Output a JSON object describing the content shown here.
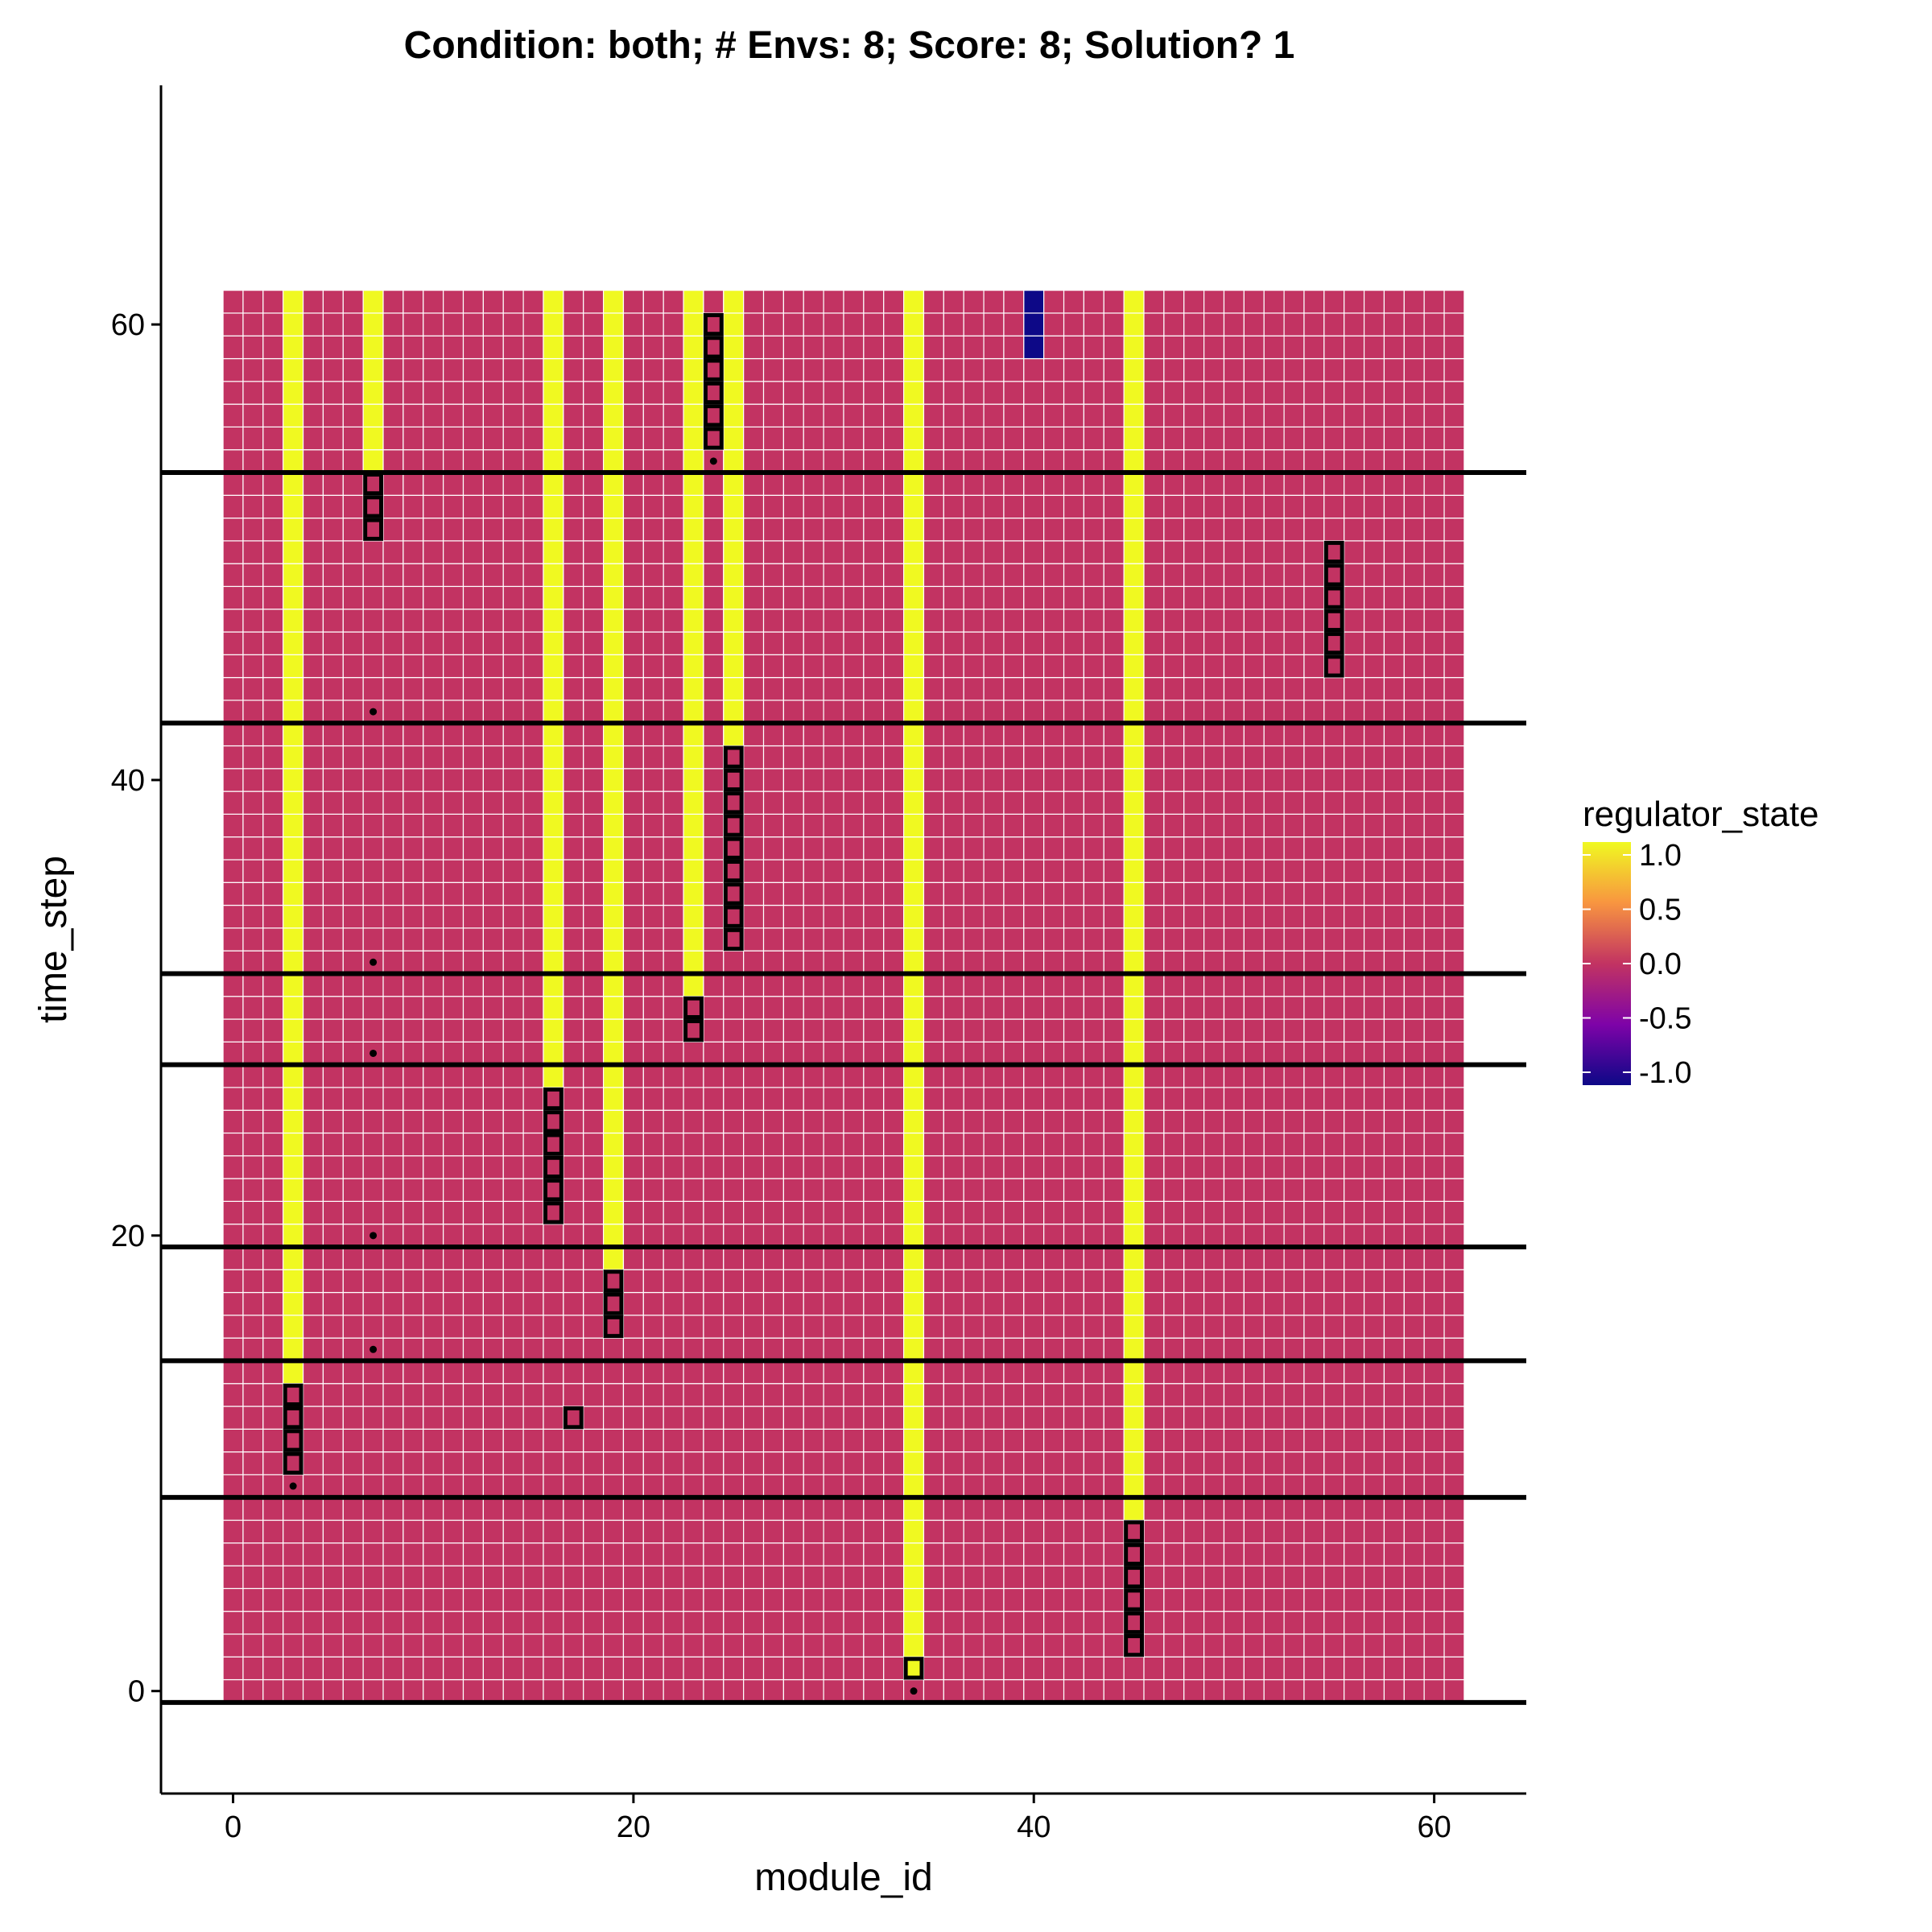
{
  "chart_data": {
    "type": "heatmap",
    "title": "Condition: both; # Envs: 8; Score: 8; Solution? 1",
    "xlabel": "module_id",
    "ylabel": "time_step",
    "xlim": [
      -3.6,
      64.6
    ],
    "ylim": [
      -4.5,
      70.5
    ],
    "x_ticks": [
      0,
      20,
      40,
      60
    ],
    "y_ticks": [
      0,
      20,
      40,
      60
    ],
    "grid": {
      "x_range": [
        0,
        61
      ],
      "y_range": [
        0,
        61
      ],
      "base_value": 0,
      "base_color": "#c23362",
      "cell_border_color": "#ffffff"
    },
    "active_columns": [
      {
        "module_id": 3,
        "from": 14,
        "to": 61,
        "value": 1
      },
      {
        "module_id": 7,
        "from": 54,
        "to": 61,
        "value": 1
      },
      {
        "module_id": 16,
        "from": 27,
        "to": 61,
        "value": 1
      },
      {
        "module_id": 19,
        "from": 19,
        "to": 61,
        "value": 1
      },
      {
        "module_id": 23,
        "from": 31,
        "to": 61,
        "value": 1
      },
      {
        "module_id": 25,
        "from": 42,
        "to": 61,
        "value": 1
      },
      {
        "module_id": 34,
        "from": 1,
        "to": 61,
        "value": 1
      },
      {
        "module_id": 45,
        "from": 8,
        "to": 61,
        "value": 1
      },
      {
        "module_id": 40,
        "from": 59,
        "to": 61,
        "value": -1
      }
    ],
    "outlined_cells": [
      {
        "module_id": 3,
        "time_steps": [
          10,
          11,
          12,
          13
        ]
      },
      {
        "module_id": 7,
        "time_steps": [
          51,
          52,
          53
        ]
      },
      {
        "module_id": 16,
        "time_steps": [
          21,
          22,
          23,
          24,
          25,
          26
        ]
      },
      {
        "module_id": 17,
        "time_steps": [
          12
        ]
      },
      {
        "module_id": 19,
        "time_steps": [
          16,
          17,
          18
        ]
      },
      {
        "module_id": 23,
        "time_steps": [
          29,
          30
        ]
      },
      {
        "module_id": 24,
        "time_steps": [
          55,
          56,
          57,
          58,
          59,
          60
        ]
      },
      {
        "module_id": 25,
        "time_steps": [
          33,
          34,
          35,
          36,
          37,
          38,
          39,
          40,
          41
        ]
      },
      {
        "module_id": 34,
        "time_steps": [
          1
        ]
      },
      {
        "module_id": 45,
        "time_steps": [
          2,
          3,
          4,
          5,
          6,
          7
        ]
      },
      {
        "module_id": 55,
        "time_steps": [
          45,
          46,
          47,
          48,
          49,
          50
        ]
      }
    ],
    "env_change_lines": [
      -0.5,
      8.5,
      14.5,
      19.5,
      27.5,
      31.5,
      42.5,
      53.5
    ],
    "points": [
      {
        "module_id": 34,
        "time_step": 0
      },
      {
        "module_id": 3,
        "time_step": 9
      },
      {
        "module_id": 7,
        "time_step": 15
      },
      {
        "module_id": 7,
        "time_step": 20
      },
      {
        "module_id": 7,
        "time_step": 28
      },
      {
        "module_id": 7,
        "time_step": 32
      },
      {
        "module_id": 7,
        "time_step": 43
      },
      {
        "module_id": 24,
        "time_step": 54
      }
    ],
    "legend": {
      "title": "regulator_state",
      "position": "right",
      "ticks": [
        {
          "value": 1,
          "label": "1.0"
        },
        {
          "value": 0.5,
          "label": "0.5"
        },
        {
          "value": 0,
          "label": "0.0"
        },
        {
          "value": -0.5,
          "label": "-0.5"
        },
        {
          "value": -1,
          "label": "-1.0"
        }
      ],
      "colors": {
        "max": "#f0f921",
        "upper": "#f89540",
        "mid": "#c23362",
        "lower": "#7e03a8",
        "min": "#0d0887"
      }
    },
    "colors": {
      "high": "#f0f921",
      "mid": "#c23362",
      "low": "#0d0887",
      "outline": "#000000",
      "env_line": "#000000"
    }
  }
}
